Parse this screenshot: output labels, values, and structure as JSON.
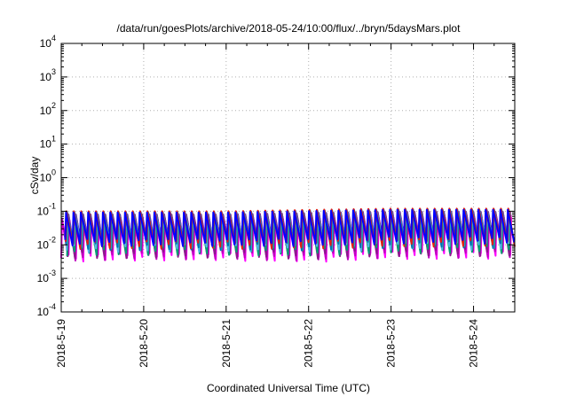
{
  "chart_data": {
    "type": "line",
    "title": "/data/run/goesPlots/archive/2018-05-24/10:00/flux/../bryn/5daysMars.plot",
    "xlabel": "Coordinated Universal Time (UTC)",
    "ylabel": "cSv/day",
    "yscale": "log",
    "ylim": [
      0.0001,
      10000
    ],
    "xlim": [
      "2018-05-19 00:00",
      "2018-05-24 12:00"
    ],
    "grid": true,
    "legend": "none",
    "x_ticks": [
      "2018-5-19",
      "2018-5-20",
      "2018-5-21",
      "2018-5-22",
      "2018-5-23",
      "2018-5-24"
    ],
    "y_ticks": [
      {
        "base": "10",
        "exp": "-4"
      },
      {
        "base": "10",
        "exp": "-3"
      },
      {
        "base": "10",
        "exp": "-2"
      },
      {
        "base": "10",
        "exp": "-1"
      },
      {
        "base": "10",
        "exp": "0"
      },
      {
        "base": "10",
        "exp": "1"
      },
      {
        "base": "10",
        "exp": "2"
      },
      {
        "base": "10",
        "exp": "3"
      },
      {
        "base": "10",
        "exp": "4"
      }
    ],
    "pattern": {
      "oscillations_per_day": 11.2,
      "day_peak_levels": [
        {
          "day": "2018-05-19",
          "peak": 0.1,
          "trough_high": 0.012,
          "trough_low": 0.004
        },
        {
          "day": "2018-05-20",
          "peak": 0.1,
          "trough_high": 0.012,
          "trough_low": 0.0045
        },
        {
          "day": "2018-05-21",
          "peak": 0.1,
          "trough_high": 0.012,
          "trough_low": 0.0045
        },
        {
          "day": "2018-05-22",
          "peak": 0.11,
          "trough_high": 0.012,
          "trough_low": 0.004
        },
        {
          "day": "2018-05-23",
          "peak": 0.12,
          "trough_high": 0.014,
          "trough_low": 0.005
        },
        {
          "day": "2018-05-24",
          "peak": 0.12,
          "trough_high": 0.014,
          "trough_low": 0.005
        }
      ]
    },
    "series": [
      {
        "color": "#ff00ff",
        "peak_factor": 0.55,
        "trough_factor": 0.8
      },
      {
        "color": "#c000c0",
        "peak_factor": 0.65,
        "trough_factor": 1.15
      },
      {
        "color": "#8b1a8b",
        "peak_factor": 0.8,
        "trough_factor": 1.7
      },
      {
        "color": "#009e73",
        "peak_factor": 0.75,
        "trough_factor": 2.6
      },
      {
        "color": "#56b4e9",
        "peak_factor": 0.85,
        "trough_factor": 3.6
      },
      {
        "color": "#0072b2",
        "peak_factor": 0.95,
        "trough_factor": 4.2
      },
      {
        "color": "#e51e10",
        "peak_factor": 1.0,
        "trough_factor": 4.6
      },
      {
        "color": "#0000ff",
        "peak_factor": 0.92,
        "trough_factor": 5.4
      }
    ]
  }
}
